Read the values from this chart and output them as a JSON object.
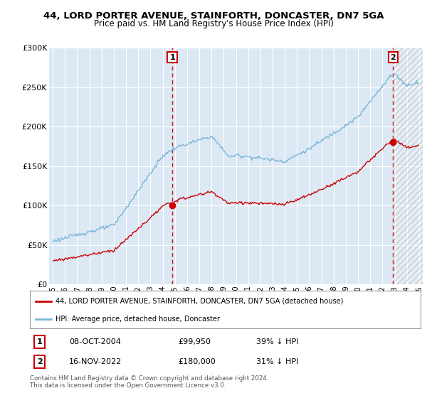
{
  "title_line1": "44, LORD PORTER AVENUE, STAINFORTH, DONCASTER, DN7 5GA",
  "title_line2": "Price paid vs. HM Land Registry's House Price Index (HPI)",
  "background_color": "#ffffff",
  "plot_bg_color": "#dce9f5",
  "grid_color": "#ffffff",
  "hpi_color": "#7ab6d8",
  "property_color": "#cc0000",
  "transaction1": {
    "date_num": 2004.79,
    "price": 99950,
    "label": "1"
  },
  "transaction2": {
    "date_num": 2022.88,
    "price": 180000,
    "label": "2"
  },
  "legend_property": "44, LORD PORTER AVENUE, STAINFORTH, DONCASTER, DN7 5GA (detached house)",
  "legend_hpi": "HPI: Average price, detached house, Doncaster",
  "table_row1": [
    "1",
    "08-OCT-2004",
    "£99,950",
    "39% ↓ HPI"
  ],
  "table_row2": [
    "2",
    "16-NOV-2022",
    "£180,000",
    "31% ↓ HPI"
  ],
  "footnote": "Contains HM Land Registry data © Crown copyright and database right 2024.\nThis data is licensed under the Open Government Licence v3.0.",
  "ylim": [
    0,
    300000
  ],
  "xlim_start": 1994.7,
  "xlim_end": 2025.3
}
